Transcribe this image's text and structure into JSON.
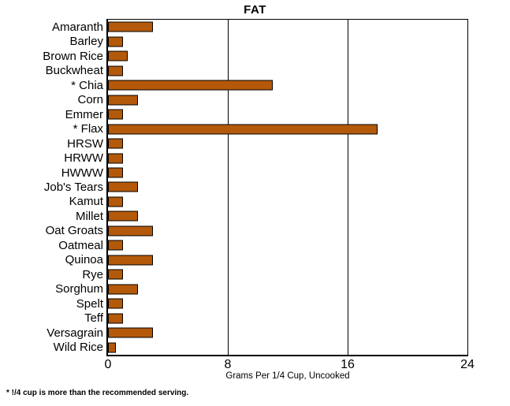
{
  "title": "FAT",
  "footnote": "* !/4 cup is more than the recommended serving.",
  "chart_data": {
    "type": "bar",
    "orientation": "horizontal",
    "title": "FAT",
    "xlabel": "Grams Per 1/4 Cup, Uncooked",
    "ylabel": "",
    "xlim": [
      0,
      24
    ],
    "xticks": [
      0,
      8,
      16,
      24
    ],
    "gridlines_x": [
      8,
      16
    ],
    "legend": "none",
    "bar_color": "#B4590A",
    "bar_border_color": "#000000",
    "categories": [
      "Amaranth",
      "Barley",
      "Brown Rice",
      "Buckwheat",
      "* Chia",
      "Corn",
      "Emmer",
      "* Flax",
      "HRSW",
      "HRWW",
      "HWWW",
      "Job's Tears",
      "Kamut",
      "Millet",
      "Oat Groats",
      "Oatmeal",
      "Quinoa",
      "Rye",
      "Sorghum",
      "Spelt",
      "Teff",
      "Versagrain",
      "Wild Rice"
    ],
    "values": [
      3,
      1,
      1.3,
      1,
      11,
      2,
      1,
      18,
      1,
      1,
      1,
      2,
      1,
      2,
      3,
      1,
      3,
      1,
      2,
      1,
      1,
      3,
      0.5
    ]
  }
}
